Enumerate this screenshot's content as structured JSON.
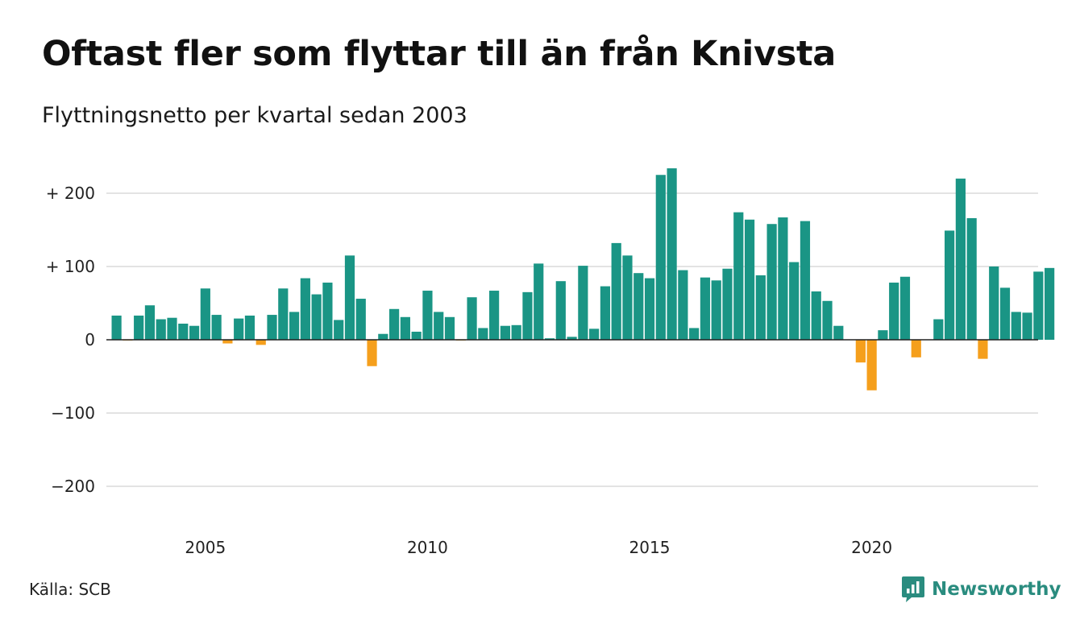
{
  "title": "Oftast fler som flyttar till än från Knivsta",
  "subtitle": "Flyttningsnetto per kvartal sedan 2003",
  "source": "Källa: SCB",
  "brand": {
    "name": "Newsworthy"
  },
  "colors": {
    "positive": "#1a9585",
    "negative": "#f59f1c",
    "grid": "#e3e3e3",
    "zero_line": "#222222",
    "brand": "#2a8c7f"
  },
  "chart_data": {
    "type": "bar",
    "title": "Oftast fler som flyttar till än från Knivsta",
    "subtitle": "Flyttningsnetto per kvartal sedan 2003",
    "xlabel": "",
    "ylabel": "",
    "ylim": [
      -240,
      240
    ],
    "y_ticks": [
      {
        "value": 200,
        "label": "+ 200"
      },
      {
        "value": 100,
        "label": "+ 100"
      },
      {
        "value": 0,
        "label": "0"
      },
      {
        "value": -100,
        "label": "−100"
      },
      {
        "value": -200,
        "label": "−200"
      }
    ],
    "x_ticks": [
      "2005",
      "2010",
      "2015",
      "2020"
    ],
    "grid": true,
    "categories": [
      "2003 K1",
      "2003 K2",
      "2003 K3",
      "2003 K4",
      "2004 K1",
      "2004 K2",
      "2004 K3",
      "2004 K4",
      "2005 K1",
      "2005 K2",
      "2005 K3",
      "2005 K4",
      "2006 K1",
      "2006 K2",
      "2006 K3",
      "2006 K4",
      "2007 K1",
      "2007 K2",
      "2007 K3",
      "2007 K4",
      "2008 K1",
      "2008 K2",
      "2008 K3",
      "2008 K4",
      "2009 K1",
      "2009 K2",
      "2009 K3",
      "2009 K4",
      "2010 K1",
      "2010 K2",
      "2010 K3",
      "2010 K4",
      "2011 K1",
      "2011 K2",
      "2011 K3",
      "2011 K4",
      "2012 K1",
      "2012 K2",
      "2012 K3",
      "2012 K4",
      "2013 K1",
      "2013 K2",
      "2013 K3",
      "2013 K4",
      "2014 K1",
      "2014 K2",
      "2014 K3",
      "2014 K4",
      "2015 K1",
      "2015 K2",
      "2015 K3",
      "2015 K4",
      "2016 K1",
      "2016 K2",
      "2016 K3",
      "2016 K4",
      "2017 K1",
      "2017 K2",
      "2017 K3",
      "2017 K4",
      "2018 K1",
      "2018 K2",
      "2018 K3",
      "2018 K4",
      "2019 K1",
      "2019 K2",
      "2019 K3",
      "2019 K4",
      "2020 K1",
      "2020 K2",
      "2020 K3",
      "2020 K4",
      "2021 K1",
      "2021 K2",
      "2021 K3",
      "2021 K4",
      "2022 K1",
      "2022 K2",
      "2022 K3",
      "2022 K4",
      "2023 K1",
      "2023 K2",
      "2023 K3",
      "2023 K4",
      "2024 K1"
    ],
    "values": [
      33,
      -1,
      33,
      47,
      28,
      30,
      22,
      19,
      70,
      34,
      -5,
      29,
      33,
      -7,
      34,
      70,
      38,
      84,
      62,
      78,
      27,
      115,
      56,
      -36,
      8,
      42,
      31,
      11,
      67,
      38,
      31,
      -1,
      58,
      16,
      67,
      19,
      20,
      65,
      104,
      2,
      80,
      4,
      101,
      15,
      73,
      132,
      115,
      91,
      84,
      225,
      234,
      95,
      16,
      85,
      81,
      97,
      174,
      164,
      88,
      158,
      167,
      106,
      162,
      66,
      53,
      19,
      0,
      -31,
      -69,
      13,
      78,
      86,
      -24,
      0,
      28,
      149,
      220,
      166,
      -26,
      100,
      71,
      38,
      37,
      93,
      98
    ]
  }
}
